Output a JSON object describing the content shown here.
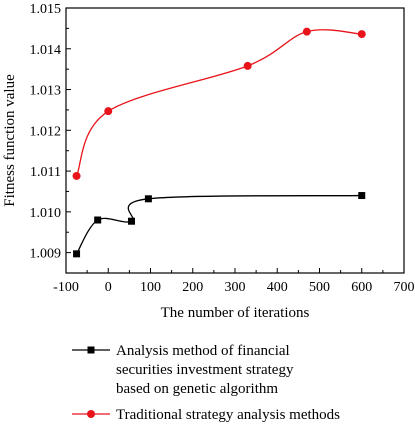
{
  "chart_data": {
    "type": "line",
    "xlabel": "The number of iterations",
    "ylabel": "Fitness function value",
    "xlim": [
      -100,
      700
    ],
    "ylim": [
      1.0085,
      1.015
    ],
    "xticks": [
      -100,
      0,
      100,
      200,
      300,
      400,
      500,
      600,
      700
    ],
    "xtick_labels": [
      "-100",
      "0",
      "100",
      "200",
      "300",
      "400",
      "500",
      "600",
      "700"
    ],
    "yticks": [
      1.009,
      1.01,
      1.011,
      1.012,
      1.013,
      1.014,
      1.015
    ],
    "ytick_labels": [
      "1.009",
      "1.010",
      "1.011",
      "1.012",
      "1.013",
      "1.014",
      "1.015"
    ],
    "grid": false,
    "legend_position": "bottom",
    "series": [
      {
        "name": "Analysis method of financial securities investment strategy based on genetic algorithm",
        "legend_lines": [
          "Analysis method of financial",
          "securities investment strategy",
          "based on genetic algorithm"
        ],
        "color": "#000000",
        "marker": "square",
        "points": [
          {
            "x": -75,
            "y": 1.00897
          },
          {
            "x": -25,
            "y": 1.0098
          },
          {
            "x": 55,
            "y": 1.00977
          },
          {
            "x": 95,
            "y": 1.01032
          },
          {
            "x": 600,
            "y": 1.0104
          }
        ]
      },
      {
        "name": "Traditional strategy analysis methods",
        "legend_lines": [
          "Traditional strategy analysis methods"
        ],
        "color": "#e8141a",
        "marker": "circle",
        "points": [
          {
            "x": -75,
            "y": 1.01088
          },
          {
            "x": 0,
            "y": 1.01247
          },
          {
            "x": 330,
            "y": 1.01358
          },
          {
            "x": 470,
            "y": 1.01442
          },
          {
            "x": 600,
            "y": 1.01436
          }
        ]
      }
    ]
  }
}
